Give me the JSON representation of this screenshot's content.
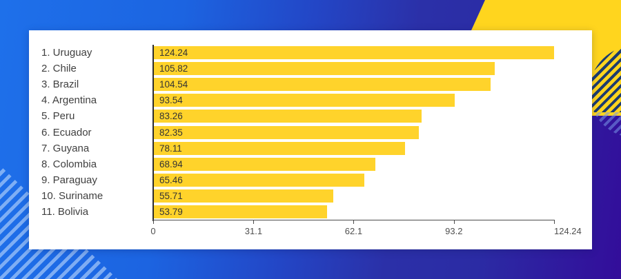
{
  "chart_data": {
    "type": "bar",
    "orientation": "horizontal",
    "title": "",
    "categories": [
      "1. Uruguay",
      "2. Chile",
      "3. Brazil",
      "4. Argentina",
      "5. Peru",
      "6. Ecuador",
      "7. Guyana",
      "8. Colombia",
      "9. Paraguay",
      "10. Suriname",
      "11. Bolivia"
    ],
    "values": [
      124.24,
      105.82,
      104.54,
      93.54,
      83.26,
      82.35,
      78.11,
      68.94,
      65.46,
      55.71,
      53.79
    ],
    "value_labels": [
      "124.24",
      "105.82",
      "104.54",
      "93.54",
      "83.26",
      "82.35",
      "78.11",
      "68.94",
      "65.46",
      "55.71",
      "53.79"
    ],
    "xlabel": "",
    "ylabel": "",
    "xlim": [
      0,
      124.24
    ],
    "x_ticks": [
      {
        "value": 0,
        "label": "0"
      },
      {
        "value": 31.1,
        "label": "31.1"
      },
      {
        "value": 62.1,
        "label": "62.1"
      },
      {
        "value": 93.2,
        "label": "93.2"
      },
      {
        "value": 124.24,
        "label": "124.24"
      }
    ],
    "grid": "off",
    "legend": "none",
    "bar_color": "#FFD32B"
  },
  "theme": {
    "bright_blue": "#1E70EA",
    "indigo": "#2B2FA6",
    "deep_indigo": "#330D9A",
    "yellow": "#FFD51E",
    "navy_stripe": "#1D3C6E",
    "card_background": "#FFFFFF",
    "label_text": "#3F3F3F",
    "value_text": "#333333",
    "axis_color": "#4A4A4A"
  }
}
